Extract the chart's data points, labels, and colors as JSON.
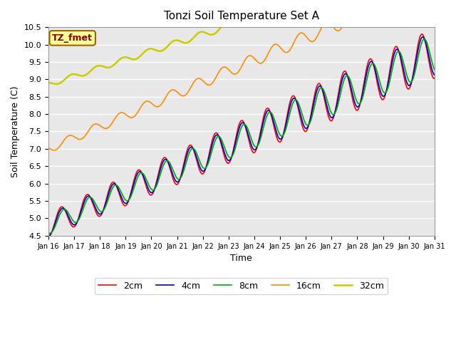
{
  "title": "Tonzi Soil Temperature Set A",
  "xlabel": "Time",
  "ylabel": "Soil Temperature (C)",
  "ylim": [
    4.5,
    10.5
  ],
  "xlim": [
    0,
    15
  ],
  "xtick_labels": [
    "Jan 16",
    "Jan 17",
    "Jan 18",
    "Jan 19",
    "Jan 20",
    "Jan 21",
    "Jan 22",
    "Jan 23",
    "Jan 24",
    "Jan 25",
    "Jan 26",
    "Jan 27",
    "Jan 28",
    "Jan 29",
    "Jan 30",
    "Jan 31"
  ],
  "annotation_text": "TZ_fmet",
  "annotation_color": "#8B0000",
  "annotation_bg": "#FFFF99",
  "annotation_border": "#996600",
  "colors": {
    "2cm": "#FF0000",
    "4cm": "#0000CC",
    "8cm": "#00AA00",
    "16cm": "#FF8C00",
    "32cm": "#CCCC00"
  },
  "bg_color": "#E8E8E8",
  "fig_bg": "#FFFFFF"
}
